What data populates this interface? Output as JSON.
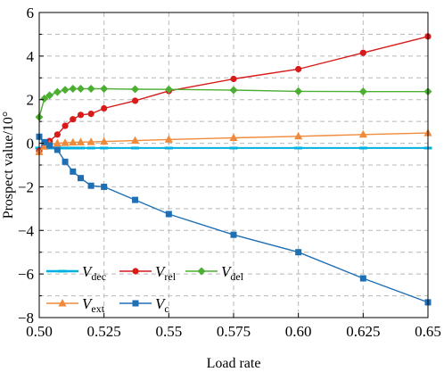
{
  "chart_data": {
    "type": "line",
    "xlabel": "Load rate",
    "ylabel": "Prospect value/10°",
    "xlim": [
      0.5,
      0.65
    ],
    "ylim": [
      -8,
      6
    ],
    "xticks": [
      0.5,
      0.525,
      0.55,
      0.575,
      0.6,
      0.625,
      0.65
    ],
    "xtick_labels": [
      "0.50",
      "0.525",
      "0.55",
      "0.575",
      "0.60",
      "0.625",
      "0.65"
    ],
    "yticks": [
      -8,
      -6,
      -4,
      -2,
      0,
      2,
      4,
      6
    ],
    "ytick_labels": [
      "−8",
      "−6",
      "−4",
      "−2",
      "0",
      "2",
      "4",
      "6"
    ],
    "grid": true,
    "legend_position": "bottom-left",
    "series": [
      {
        "name": "V",
        "subscript": "dec",
        "color": "#00b0e0",
        "marker": "dash",
        "x": [
          0.5,
          0.502,
          0.504,
          0.507,
          0.51,
          0.513,
          0.516,
          0.52,
          0.525,
          0.537,
          0.55,
          0.575,
          0.6,
          0.625,
          0.65
        ],
        "y": [
          -0.22,
          -0.22,
          -0.22,
          -0.22,
          -0.22,
          -0.22,
          -0.22,
          -0.22,
          -0.22,
          -0.22,
          -0.22,
          -0.22,
          -0.22,
          -0.22,
          -0.22
        ]
      },
      {
        "name": "V",
        "subscript": "rel",
        "color": "#d71a1a",
        "marker": "circle",
        "x": [
          0.5,
          0.502,
          0.504,
          0.507,
          0.51,
          0.513,
          0.516,
          0.52,
          0.525,
          0.537,
          0.55,
          0.575,
          0.6,
          0.625,
          0.65
        ],
        "y": [
          -0.35,
          -0.1,
          0.1,
          0.4,
          0.8,
          1.1,
          1.3,
          1.35,
          1.6,
          1.95,
          2.4,
          2.95,
          3.4,
          4.15,
          4.9
        ]
      },
      {
        "name": "V",
        "subscript": "del",
        "color": "#4caf32",
        "marker": "diamond",
        "x": [
          0.5,
          0.502,
          0.504,
          0.507,
          0.51,
          0.513,
          0.516,
          0.52,
          0.525,
          0.537,
          0.55,
          0.575,
          0.6,
          0.625,
          0.65
        ],
        "y": [
          1.2,
          2.05,
          2.2,
          2.35,
          2.45,
          2.5,
          2.5,
          2.5,
          2.5,
          2.48,
          2.47,
          2.44,
          2.38,
          2.37,
          2.37
        ]
      },
      {
        "name": "V",
        "subscript": "ext",
        "color": "#f08a3c",
        "marker": "triangle",
        "x": [
          0.5,
          0.502,
          0.504,
          0.507,
          0.51,
          0.513,
          0.516,
          0.52,
          0.525,
          0.537,
          0.55,
          0.575,
          0.6,
          0.625,
          0.65
        ],
        "y": [
          -0.4,
          -0.15,
          -0.05,
          0.0,
          0.02,
          0.04,
          0.05,
          0.06,
          0.08,
          0.12,
          0.17,
          0.25,
          0.32,
          0.4,
          0.47
        ]
      },
      {
        "name": "V",
        "subscript": "c",
        "color": "#1f6fb5",
        "marker": "square",
        "x": [
          0.5,
          0.502,
          0.504,
          0.507,
          0.51,
          0.513,
          0.516,
          0.52,
          0.525,
          0.537,
          0.55,
          0.575,
          0.6,
          0.625,
          0.65
        ],
        "y": [
          0.3,
          0.05,
          -0.1,
          -0.3,
          -0.85,
          -1.3,
          -1.6,
          -1.95,
          -2.0,
          -2.6,
          -3.25,
          -4.2,
          -5.0,
          -6.2,
          -7.3
        ]
      }
    ]
  }
}
